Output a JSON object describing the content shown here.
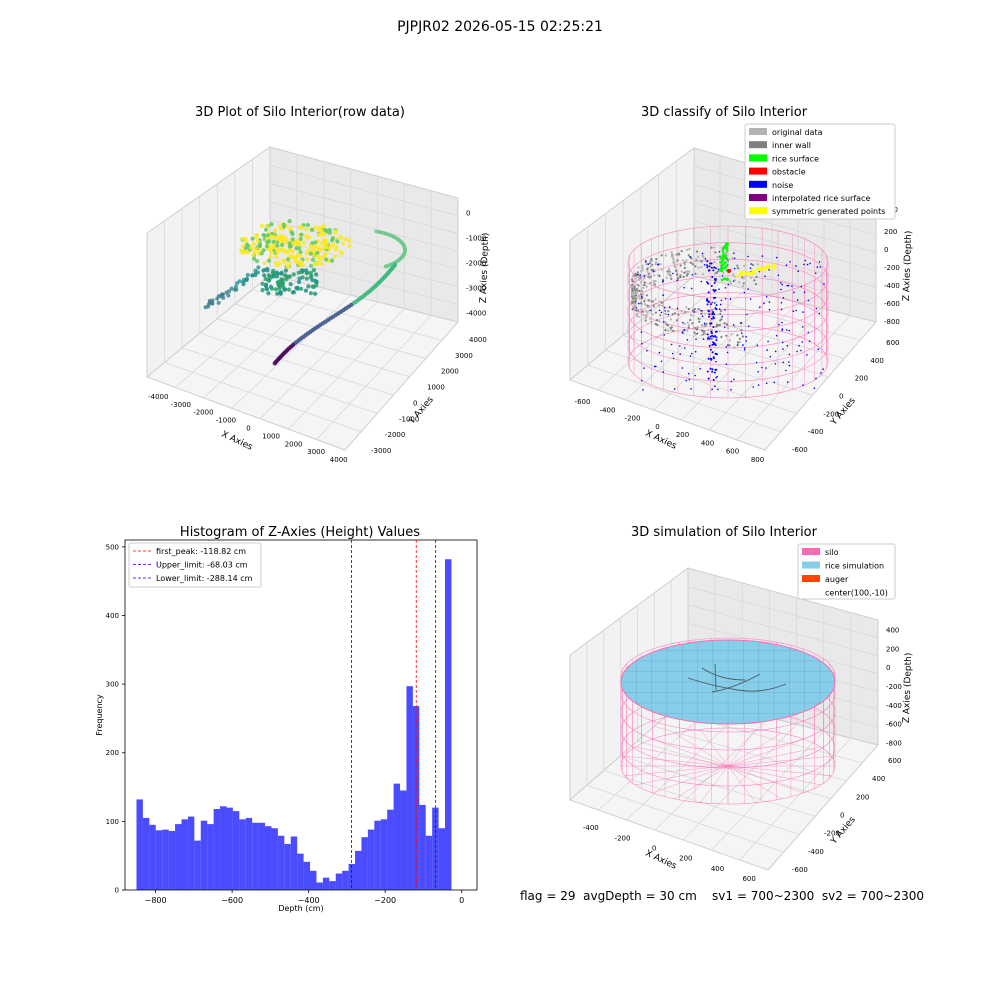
{
  "figure": {
    "suptitle": "PJPJR02 2026-05-15 02:25:21",
    "footer": "flag = 29  avgDepth = 30 cm    sv1 = 700~2300  sv2 = 700~2300"
  },
  "panels": {
    "raw": {
      "title": "3D Plot of Silo Interior(row data)",
      "xlabel": "X Axies",
      "ylabel": "Y Axies",
      "zlabel": "Z Axies (Depth)",
      "xticks": [
        "-4000",
        "-3000",
        "-2000",
        "-1000",
        "0",
        "1000",
        "2000",
        "3000",
        "4000"
      ],
      "yticks": [
        "-3000",
        "-2000",
        "-1000",
        "0",
        "1000",
        "2000",
        "3000",
        "4000"
      ],
      "zticks": [
        "0",
        "-1000",
        "-2000",
        "-3000",
        "-4000"
      ]
    },
    "classify": {
      "title": "3D classify of Silo Interior",
      "xlabel": "X Axies",
      "ylabel": "Y Axies",
      "zlabel": "Z Axies (Depth)",
      "xticks": [
        "-600",
        "-400",
        "-200",
        "0",
        "200",
        "400",
        "600",
        "800"
      ],
      "yticks": [
        "-600",
        "-400",
        "-200",
        "0",
        "200",
        "400",
        "600"
      ],
      "zticks": [
        "200",
        "0",
        "-200",
        "-400",
        "-600",
        "-800"
      ],
      "zticks_extra": [
        "00"
      ],
      "legend": [
        {
          "label": "original data",
          "color": "#b3b3b3"
        },
        {
          "label": "inner wall",
          "color": "#808080"
        },
        {
          "label": "rice surface",
          "color": "#00ff00"
        },
        {
          "label": "obstacle",
          "color": "#ff0000"
        },
        {
          "label": "noise",
          "color": "#0000ff"
        },
        {
          "label": "interpolated rice surface",
          "color": "#800080"
        },
        {
          "label": "symmetric generated points",
          "color": "#ffff00"
        }
      ]
    },
    "simulation": {
      "title": "3D simulation of Silo Interior",
      "xlabel": "X Axies",
      "ylabel": "Y Axies",
      "zlabel": "Z Axies (Depth)",
      "xticks": [
        "-400",
        "-200",
        "0",
        "200",
        "400",
        "600"
      ],
      "yticks": [
        "-600",
        "-400",
        "-200",
        "0",
        "200",
        "400",
        "600"
      ],
      "zticks": [
        "400",
        "200",
        "0",
        "-200",
        "-400",
        "-600",
        "-800"
      ],
      "legend": [
        {
          "label": "silo",
          "color": "#ff69b4"
        },
        {
          "label": "rice simulation",
          "color": "#87ceeb"
        },
        {
          "label": "auger",
          "color": "#ff4500"
        },
        {
          "label": "center(100,-10)",
          "color": ""
        }
      ]
    }
  },
  "chart_data": [
    {
      "type": "scatter",
      "title": "3D Plot of Silo Interior(row data)",
      "xlabel": "X Axies",
      "ylabel": "Y Axies",
      "zlabel": "Z Axies (Depth)",
      "xlim": [
        -4000,
        4500
      ],
      "ylim": [
        -3000,
        4500
      ],
      "zlim": [
        -4500,
        0
      ],
      "colormap": "viridis"
    },
    {
      "type": "scatter",
      "title": "3D classify of Silo Interior",
      "xlabel": "X Axies",
      "ylabel": "Y Axies",
      "zlabel": "Z Axies (Depth)",
      "xlim": [
        -600,
        800
      ],
      "ylim": [
        -600,
        600
      ],
      "zlim": [
        -900,
        300
      ]
    },
    {
      "type": "bar",
      "title": "Histogram of Z-Axies (Height) Values",
      "xlabel": "Depth (cm)",
      "ylabel": "Frequency",
      "xlim": [
        -880,
        40
      ],
      "ylim": [
        0,
        510
      ],
      "xticks": [
        -800,
        -600,
        -400,
        -200,
        0
      ],
      "yticks": [
        0,
        100,
        200,
        300,
        400,
        500
      ],
      "bin_start": -850,
      "bin_width": 16.8,
      "color": "#0000ff",
      "values": [
        132,
        105,
        95,
        87,
        88,
        86,
        96,
        103,
        107,
        72,
        101,
        96,
        118,
        122,
        120,
        115,
        103,
        105,
        98,
        98,
        93,
        90,
        79,
        67,
        78,
        53,
        41,
        28,
        11,
        18,
        13,
        24,
        28,
        38,
        57,
        77,
        88,
        101,
        103,
        117,
        155,
        145,
        297,
        268,
        124,
        79,
        120,
        90,
        482
      ],
      "lines": [
        {
          "label": "first_peak: -118.82 cm",
          "x": -118.82,
          "color": "#ff0000"
        },
        {
          "label": "Upper_limit: -68.03 cm",
          "x": -68.03,
          "color": "#0000ff"
        },
        {
          "label": "Lower_limit: -288.14 cm",
          "x": -288.14,
          "color": "#0000ff"
        }
      ]
    },
    {
      "type": "area",
      "title": "3D simulation of Silo Interior",
      "xlabel": "X Axies",
      "ylabel": "Y Axies",
      "zlabel": "Z Axies (Depth)",
      "xlim": [
        -500,
        700
      ],
      "ylim": [
        -700,
        700
      ],
      "zlim": [
        -900,
        450
      ]
    }
  ]
}
